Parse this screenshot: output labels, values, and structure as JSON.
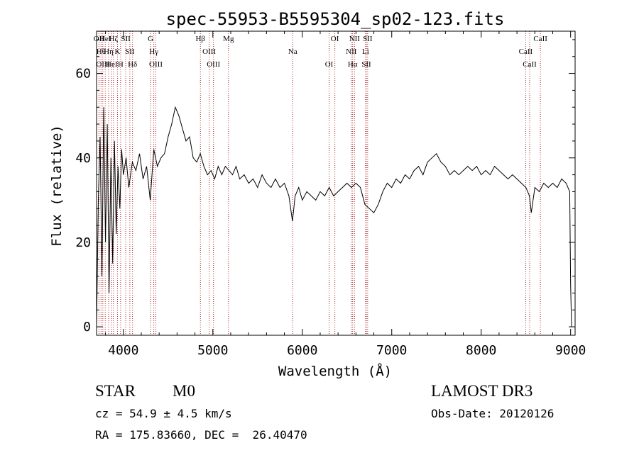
{
  "chart_data": {
    "type": "line",
    "title": "spec-55953-B5595304_sp02-123.fits",
    "xlabel": "Wavelength (Å)",
    "ylabel": "Flux (relative)",
    "xlim": [
      3700,
      9050
    ],
    "ylim": [
      -2,
      70
    ],
    "x_ticks": [
      4000,
      5000,
      6000,
      7000,
      8000,
      9000
    ],
    "y_ticks": [
      0,
      20,
      40,
      60
    ],
    "series": [
      {
        "name": "flux",
        "x": [
          3700,
          3720,
          3740,
          3760,
          3780,
          3800,
          3820,
          3840,
          3860,
          3880,
          3900,
          3920,
          3940,
          3960,
          3980,
          4000,
          4030,
          4060,
          4100,
          4140,
          4180,
          4220,
          4260,
          4300,
          4340,
          4380,
          4420,
          4460,
          4500,
          4540,
          4580,
          4620,
          4660,
          4700,
          4740,
          4780,
          4820,
          4860,
          4900,
          4940,
          4980,
          5020,
          5060,
          5100,
          5140,
          5180,
          5220,
          5260,
          5300,
          5350,
          5400,
          5450,
          5500,
          5550,
          5600,
          5650,
          5700,
          5750,
          5800,
          5850,
          5890,
          5920,
          5960,
          6000,
          6050,
          6100,
          6150,
          6200,
          6250,
          6300,
          6350,
          6400,
          6450,
          6500,
          6550,
          6600,
          6650,
          6700,
          6750,
          6800,
          6850,
          6900,
          6950,
          7000,
          7050,
          7100,
          7150,
          7200,
          7250,
          7300,
          7350,
          7400,
          7450,
          7500,
          7550,
          7600,
          7650,
          7700,
          7750,
          7800,
          7850,
          7900,
          7950,
          8000,
          8050,
          8100,
          8150,
          8200,
          8250,
          8300,
          8350,
          8400,
          8450,
          8500,
          8540,
          8560,
          8600,
          8650,
          8700,
          8750,
          8800,
          8850,
          8900,
          8950,
          8990,
          9000,
          9010
        ],
        "values": [
          0,
          30,
          45,
          12,
          52,
          20,
          48,
          8,
          40,
          15,
          44,
          22,
          38,
          28,
          42,
          36,
          40,
          33,
          39,
          37,
          41,
          35,
          38,
          30,
          42,
          38,
          40,
          41,
          45,
          48,
          52,
          50,
          47,
          44,
          45,
          40,
          39,
          41,
          38,
          36,
          37,
          35,
          38,
          36,
          38,
          37,
          36,
          38,
          35,
          36,
          34,
          35,
          33,
          36,
          34,
          33,
          35,
          33,
          34,
          31,
          25,
          31,
          33,
          30,
          32,
          31,
          30,
          32,
          31,
          33,
          31,
          32,
          33,
          34,
          33,
          34,
          33,
          29,
          28,
          27,
          29,
          32,
          34,
          33,
          35,
          34,
          36,
          35,
          37,
          38,
          36,
          39,
          40,
          41,
          39,
          38,
          36,
          37,
          36,
          37,
          38,
          37,
          38,
          36,
          37,
          36,
          38,
          37,
          36,
          35,
          36,
          35,
          34,
          33,
          31,
          27,
          33,
          32,
          34,
          33,
          34,
          33,
          35,
          34,
          32,
          10,
          0
        ]
      }
    ],
    "lines": [
      {
        "x": 3727,
        "label": "OII"
      },
      {
        "x": 3750,
        "label": "Hθ"
      },
      {
        "x": 3770,
        "label": "OIII"
      },
      {
        "x": 3797,
        "label": "HeI"
      },
      {
        "x": 3835,
        "label": "Hη"
      },
      {
        "x": 3869,
        "label": "HeI"
      },
      {
        "x": 3889,
        "label": "Hζ"
      },
      {
        "x": 3934,
        "label": "K"
      },
      {
        "x": 3969,
        "label": "H"
      },
      {
        "x": 4026,
        "label": "SII"
      },
      {
        "x": 4072,
        "label": "SII"
      },
      {
        "x": 4102,
        "label": "Hδ"
      },
      {
        "x": 4304,
        "label": "G"
      },
      {
        "x": 4340,
        "label": "Hγ"
      },
      {
        "x": 4363,
        "label": "OIII"
      },
      {
        "x": 4861,
        "label": "Hβ"
      },
      {
        "x": 4959,
        "label": "OIII"
      },
      {
        "x": 5007,
        "label": "OIII"
      },
      {
        "x": 5175,
        "label": "Mg"
      },
      {
        "x": 5893,
        "label": "Na"
      },
      {
        "x": 6300,
        "label": "OI"
      },
      {
        "x": 6364,
        "label": "OI"
      },
      {
        "x": 6548,
        "label": "NII"
      },
      {
        "x": 6563,
        "label": "Hα"
      },
      {
        "x": 6584,
        "label": "NII"
      },
      {
        "x": 6708,
        "label": "Li"
      },
      {
        "x": 6716,
        "label": "SII"
      },
      {
        "x": 6731,
        "label": "SII"
      },
      {
        "x": 8498,
        "label": "CaII"
      },
      {
        "x": 8542,
        "label": "CaII"
      },
      {
        "x": 8662,
        "label": "CaII"
      }
    ]
  },
  "info": {
    "class_label": "STAR",
    "subclass": "M0",
    "survey": "LAMOST DR3",
    "cz": "cz = 54.9 ± 4.5 km/s",
    "obs_date": "Obs-Date: 20120126",
    "coords": "RA = 175.83660, DEC =  26.40470"
  },
  "colors": {
    "line_marker": "#b22222",
    "axis": "#000000"
  }
}
